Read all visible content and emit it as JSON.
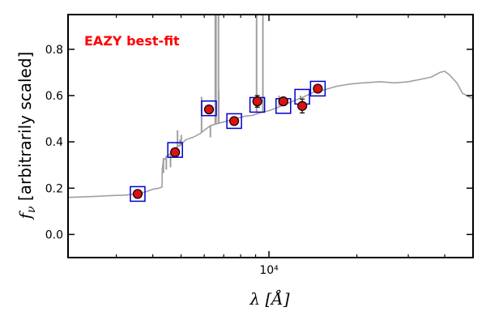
{
  "chart_data": {
    "type": "scatter",
    "title": "",
    "annotation": "EAZY best-fit",
    "annotation_color": "#ff0000",
    "ylabel": "$f_\\nu$ [arbitrarily scaled]",
    "xlabel": "$\\lambda$ [$\\AA$]",
    "x_scale": "log",
    "xlim": [
      2050,
      50000
    ],
    "ylim": [
      -0.1,
      0.95
    ],
    "y_ticks": [
      0.0,
      0.2,
      0.4,
      0.6,
      0.8
    ],
    "y_tick_labels": [
      "0.0",
      "0.2",
      "0.4",
      "0.6",
      "0.8"
    ],
    "x_tick_labels": [
      {
        "value": 10000,
        "label": "10⁴"
      }
    ],
    "x_minor_ticks": [
      3000,
      4000,
      5000,
      6000,
      7000,
      8000,
      9000,
      20000,
      30000,
      40000
    ],
    "grid": false,
    "colors": {
      "model": "#a0a0a0",
      "observed_fill": "#dd1111",
      "observed_edge": "#000000",
      "model_box": "#0000cc"
    },
    "model_points": [
      {
        "x": 3550,
        "y": 0.175
      },
      {
        "x": 4770,
        "y": 0.365
      },
      {
        "x": 6230,
        "y": 0.545
      },
      {
        "x": 7600,
        "y": 0.49
      },
      {
        "x": 9120,
        "y": 0.56
      },
      {
        "x": 11200,
        "y": 0.555
      },
      {
        "x": 13000,
        "y": 0.595
      },
      {
        "x": 14700,
        "y": 0.63
      }
    ],
    "observed_points": [
      {
        "x": 3550,
        "y": 0.175,
        "err": 0.008
      },
      {
        "x": 4770,
        "y": 0.355,
        "err": 0.01
      },
      {
        "x": 6230,
        "y": 0.54,
        "err": 0.01
      },
      {
        "x": 7600,
        "y": 0.49,
        "err": 0.01
      },
      {
        "x": 9120,
        "y": 0.575,
        "err": 0.025
      },
      {
        "x": 11200,
        "y": 0.575,
        "err": 0.015
      },
      {
        "x": 13000,
        "y": 0.555,
        "err": 0.03
      },
      {
        "x": 14700,
        "y": 0.63,
        "err": 0.015
      }
    ],
    "model_spectrum": [
      [
        2050,
        0.16
      ],
      [
        2300,
        0.162
      ],
      [
        2600,
        0.165
      ],
      [
        2900,
        0.168
      ],
      [
        3200,
        0.17
      ],
      [
        3500,
        0.175
      ],
      [
        3800,
        0.185
      ],
      [
        4000,
        0.195
      ],
      [
        4200,
        0.2
      ],
      [
        4300,
        0.205
      ],
      [
        4310,
        0.28
      ],
      [
        4330,
        0.3
      ],
      [
        4350,
        0.32
      ],
      [
        4500,
        0.34
      ],
      [
        4700,
        0.36
      ],
      [
        4800,
        0.375
      ],
      [
        5000,
        0.39
      ],
      [
        5200,
        0.41
      ],
      [
        5500,
        0.42
      ],
      [
        5800,
        0.435
      ],
      [
        6000,
        0.45
      ],
      [
        6300,
        0.47
      ],
      [
        6700,
        0.48
      ],
      [
        7200,
        0.49
      ],
      [
        7700,
        0.5
      ],
      [
        8200,
        0.51
      ],
      [
        8800,
        0.515
      ],
      [
        9300,
        0.525
      ],
      [
        10000,
        0.535
      ],
      [
        10800,
        0.55
      ],
      [
        11500,
        0.565
      ],
      [
        12300,
        0.58
      ],
      [
        13200,
        0.595
      ],
      [
        14200,
        0.615
      ],
      [
        15500,
        0.625
      ],
      [
        17000,
        0.64
      ],
      [
        19000,
        0.65
      ],
      [
        21000,
        0.655
      ],
      [
        24000,
        0.66
      ],
      [
        27000,
        0.655
      ],
      [
        30000,
        0.66
      ],
      [
        33000,
        0.67
      ],
      [
        36000,
        0.68
      ],
      [
        38500,
        0.7
      ],
      [
        40000,
        0.705
      ],
      [
        41500,
        0.69
      ],
      [
        44000,
        0.655
      ],
      [
        46000,
        0.61
      ],
      [
        50000,
        0.585
      ]
    ],
    "emission_lines": [
      {
        "x": 4350,
        "top": 0.265,
        "base": 0.33
      },
      {
        "x": 4450,
        "top": 0.28,
        "base": 0.34
      },
      {
        "x": 4600,
        "top": 0.29,
        "base": 0.35
      },
      {
        "x": 4861,
        "top": 0.45,
        "base": 0.375
      },
      {
        "x": 4959,
        "top": 0.41,
        "base": 0.38
      },
      {
        "x": 5007,
        "top": 0.43,
        "base": 0.385
      },
      {
        "x": 5876,
        "top": 0.595,
        "base": 0.44
      },
      {
        "x": 6300,
        "top": 0.42,
        "base": 0.47
      },
      {
        "x": 6548,
        "top": 0.95,
        "base": 0.475
      },
      {
        "x": 6563,
        "top": 0.95,
        "base": 0.475
      },
      {
        "x": 6584,
        "top": 0.95,
        "base": 0.475
      },
      {
        "x": 6716,
        "top": 0.95,
        "base": 0.48
      },
      {
        "x": 6731,
        "top": 0.62,
        "base": 0.48
      },
      {
        "x": 9069,
        "top": 0.95,
        "base": 0.525
      },
      {
        "x": 9532,
        "top": 0.95,
        "base": 0.53
      },
      {
        "x": 10830,
        "top": 0.6,
        "base": 0.55
      },
      {
        "x": 12820,
        "top": 0.6,
        "base": 0.59
      }
    ]
  }
}
